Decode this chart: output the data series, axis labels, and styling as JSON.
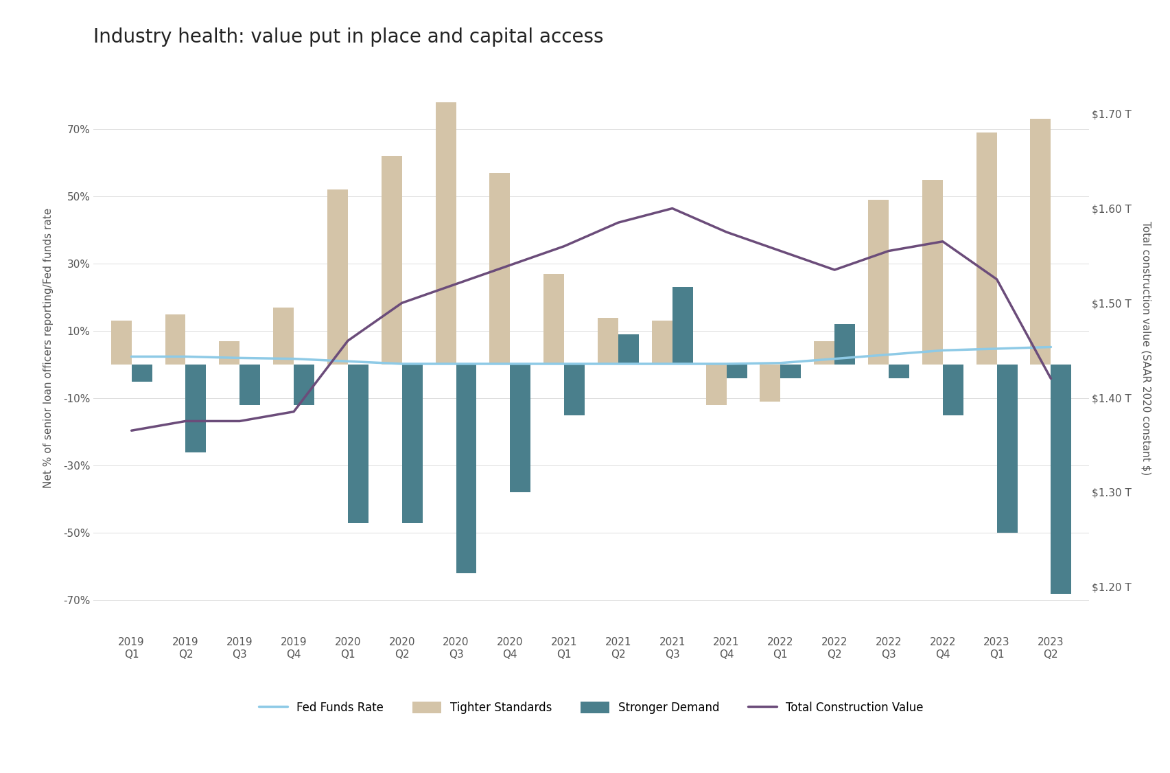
{
  "title": "Industry health: value put in place and capital access",
  "categories": [
    "2019\nQ1",
    "2019\nQ2",
    "2019\nQ3",
    "2019\nQ4",
    "2020\nQ1",
    "2020\nQ2",
    "2020\nQ3",
    "2020\nQ4",
    "2021\nQ1",
    "2021\nQ2",
    "2021\nQ3",
    "2021\nQ4",
    "2022\nQ1",
    "2022\nQ2",
    "2022\nQ3",
    "2022\nQ4",
    "2023\nQ1",
    "2023\nQ2"
  ],
  "tighter_standards": [
    13,
    15,
    7,
    17,
    52,
    62,
    78,
    57,
    27,
    14,
    13,
    -12,
    -11,
    7,
    49,
    55,
    69,
    73
  ],
  "stronger_demand": [
    -5,
    -26,
    -12,
    -12,
    -47,
    -47,
    -62,
    -38,
    -15,
    9,
    23,
    -4,
    -4,
    12,
    -4,
    -15,
    -50,
    -68
  ],
  "fed_funds_rate": [
    2.4,
    2.4,
    2.0,
    1.75,
    1.0,
    0.25,
    0.25,
    0.25,
    0.25,
    0.25,
    0.25,
    0.25,
    0.5,
    1.75,
    3.0,
    4.25,
    4.75,
    5.25
  ],
  "construction_values": [
    1.365,
    1.375,
    1.375,
    1.385,
    1.46,
    1.5,
    1.52,
    1.54,
    1.56,
    1.585,
    1.6,
    1.575,
    1.555,
    1.535,
    1.555,
    1.565,
    1.525,
    1.42
  ],
  "left_ylim": [
    -80,
    90
  ],
  "left_yticks": [
    -70,
    -50,
    -30,
    -10,
    10,
    30,
    50,
    70
  ],
  "right_ylim": [
    1.15,
    1.755
  ],
  "right_yticks": [
    1.2,
    1.3,
    1.4,
    1.5,
    1.6,
    1.7
  ],
  "bar_width": 0.38,
  "tighter_color": "#d4c4a8",
  "demand_color": "#4a7f8c",
  "fed_color": "#8ecae6",
  "construction_color": "#6b4c7a",
  "bg_color": "#ffffff",
  "title_fontsize": 20,
  "axis_label_fontsize": 11,
  "tick_fontsize": 11,
  "legend_fontsize": 12,
  "ylabel_left": "Net % of senior loan officers reporting/Fed funds rate",
  "ylabel_right": "Total construction value (SAAR 2020 constant $)"
}
